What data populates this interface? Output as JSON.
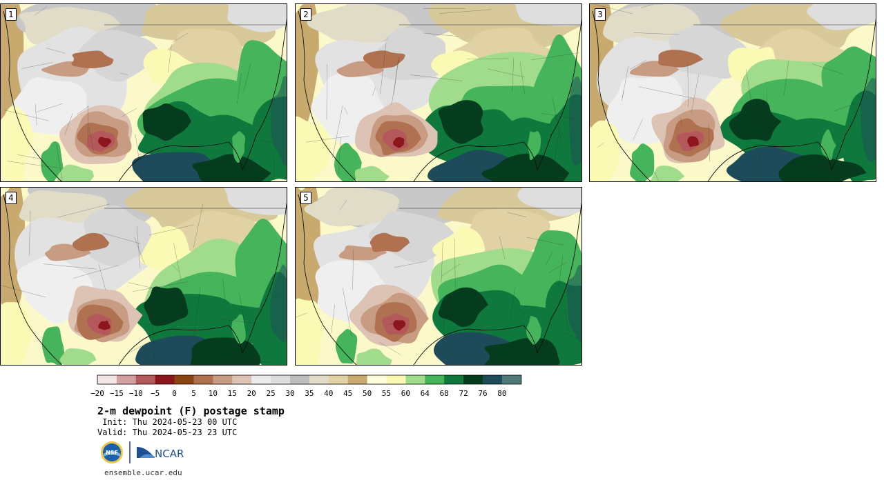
{
  "panels": [
    {
      "label": "1"
    },
    {
      "label": "2"
    },
    {
      "label": "3"
    },
    {
      "label": "4"
    },
    {
      "label": "5"
    }
  ],
  "colorbar": {
    "tick_labels": [
      "−20",
      "−15",
      "−10",
      "−5",
      "0",
      "5",
      "10",
      "15",
      "20",
      "25",
      "30",
      "35",
      "40",
      "45",
      "50",
      "55",
      "60",
      "64",
      "68",
      "72",
      "76",
      "80"
    ],
    "colors": [
      "#f4e6e6",
      "#d2a0a0",
      "#b4595b",
      "#8c161c",
      "#8b4513",
      "#b07150",
      "#c89c82",
      "#dcc3b4",
      "#ebebeb",
      "#dedede",
      "#bebebe",
      "#e1dcc8",
      "#e0d2a5",
      "#c8aa6e",
      "#ffffdc",
      "#fafab4",
      "#a0dc8c",
      "#46b45a",
      "#0f783c",
      "#053c1e",
      "#1e4b5a",
      "#507a7a"
    ]
  },
  "title": "2-m dewpoint (F) postage stamp",
  "init": " Init: Thu 2024-05-23 00 UTC",
  "valid": "Valid: Thu 2024-05-23 23 UTC",
  "logos": {
    "nsf": "NSF",
    "ncar": "NCAR"
  },
  "url": "ensemble.ucar.edu"
}
